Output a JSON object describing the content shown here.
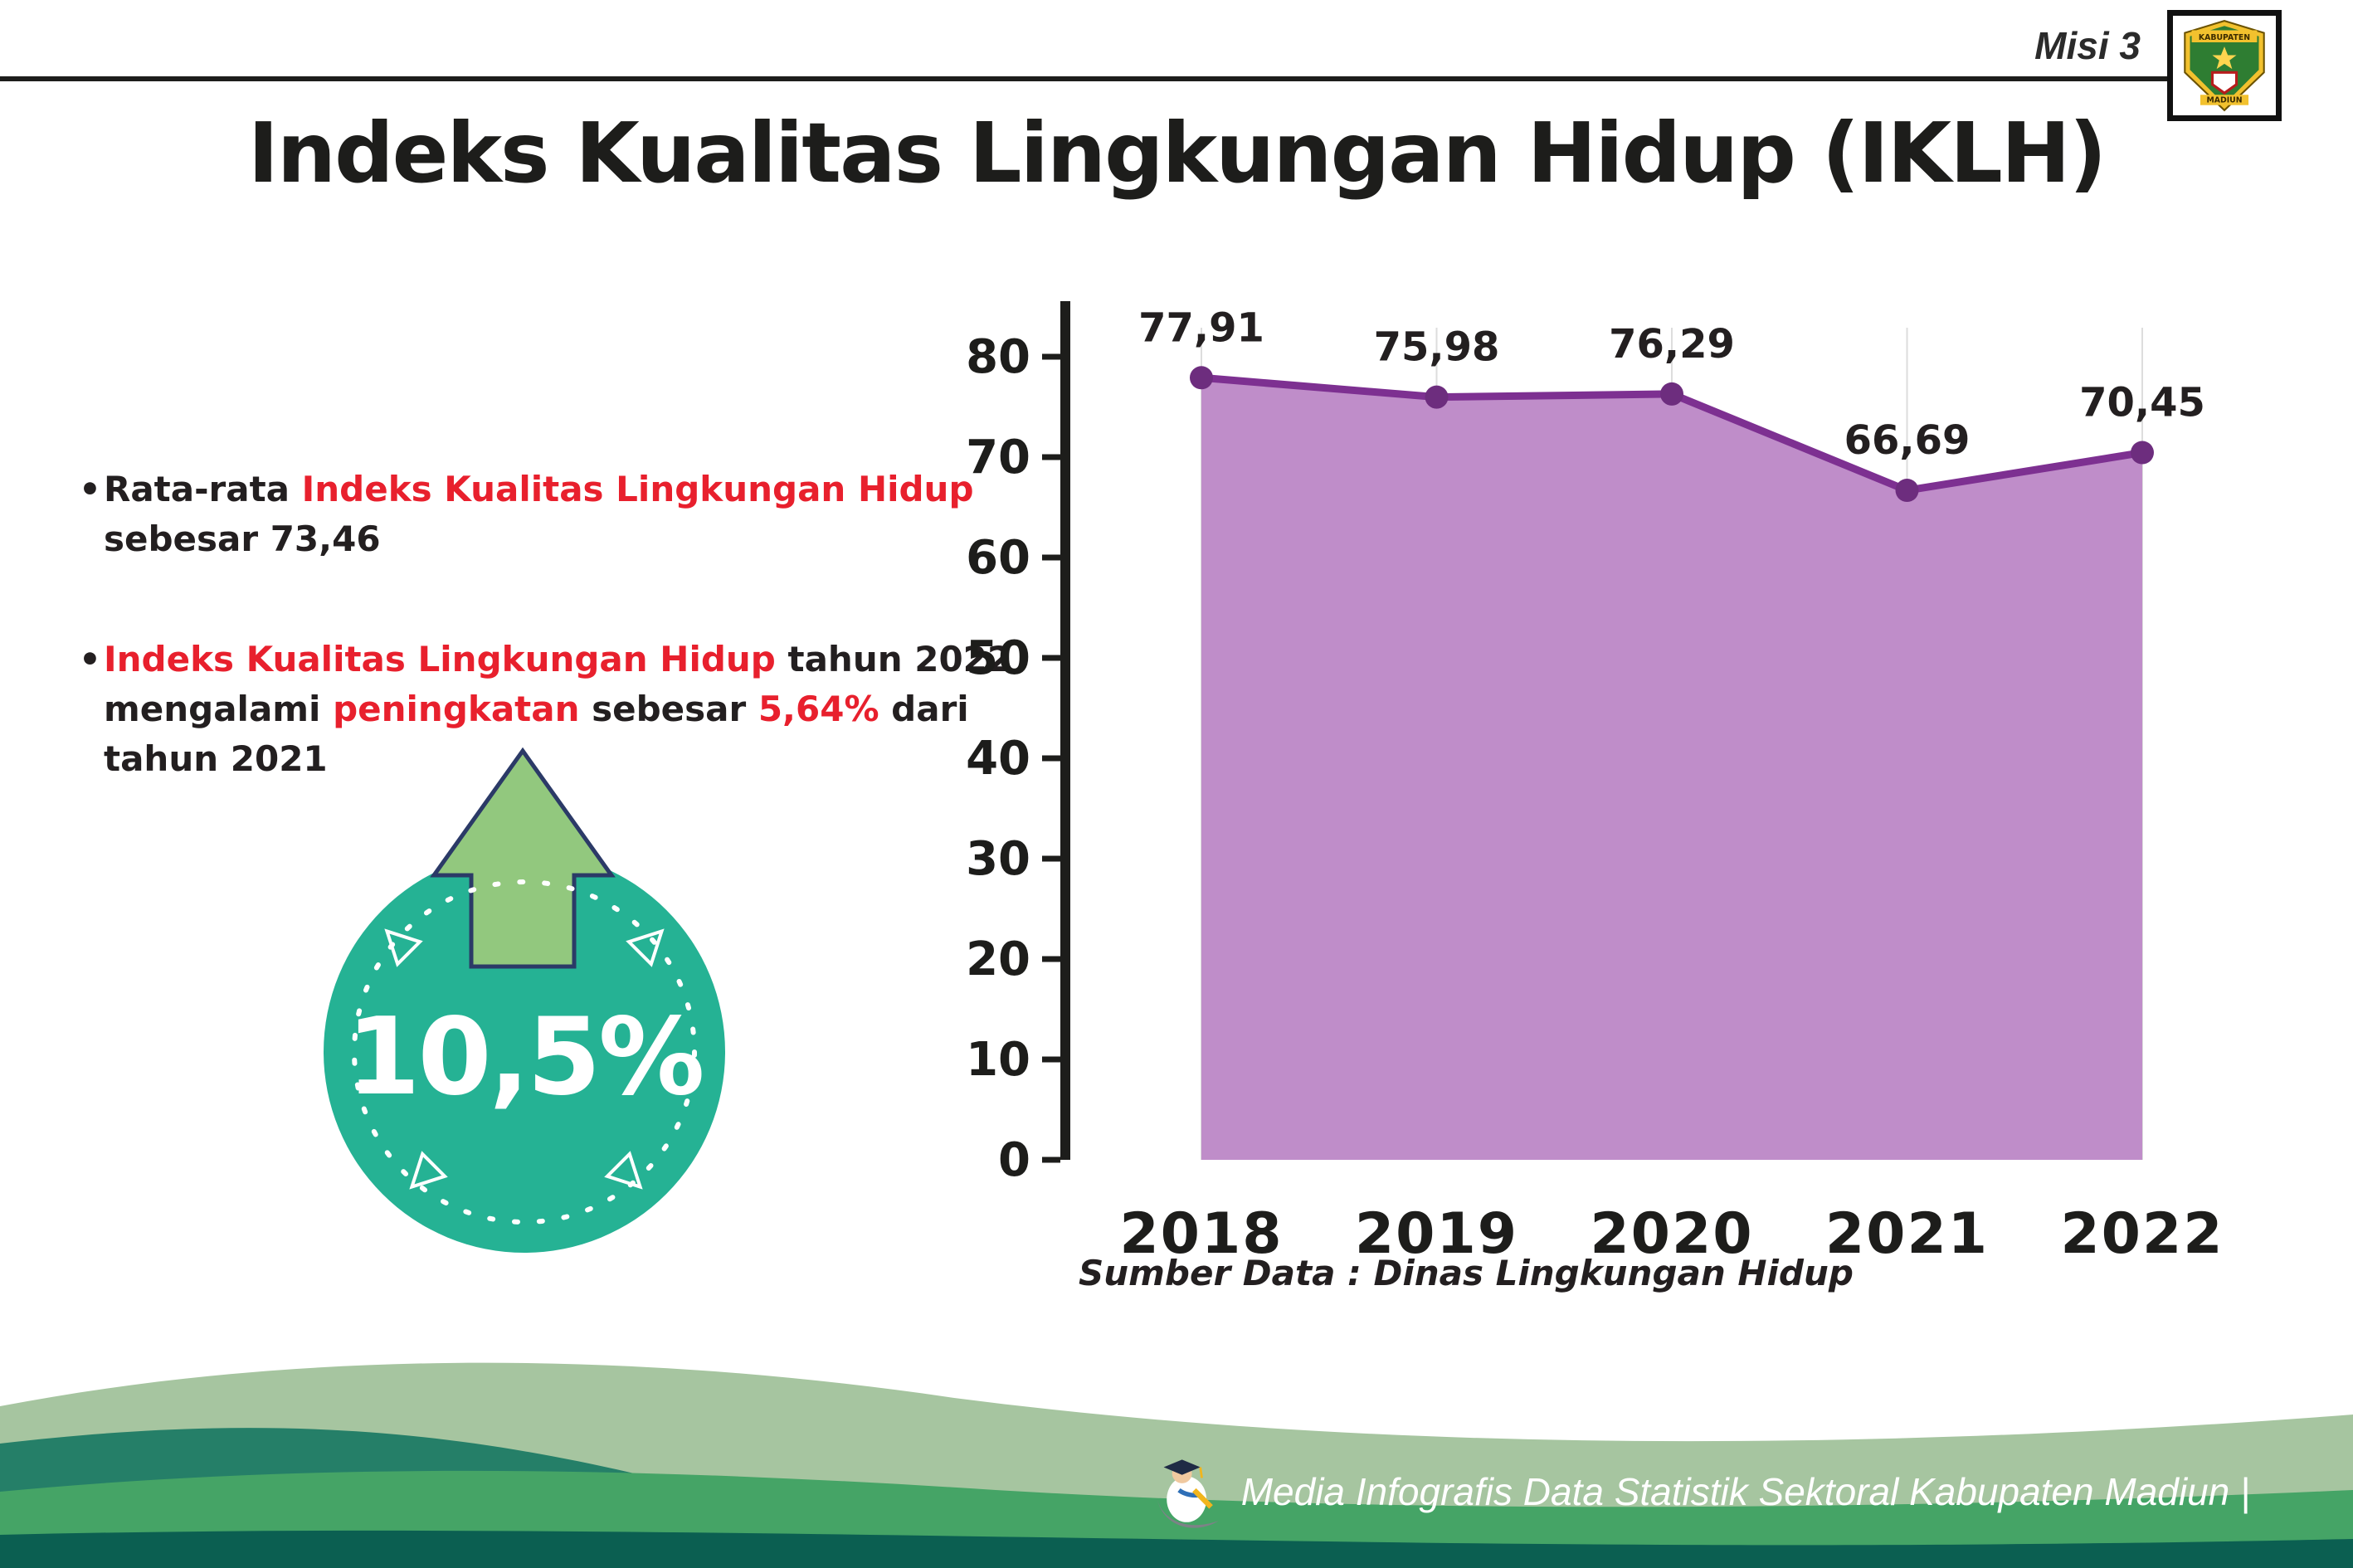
{
  "header": {
    "misi": "Misi 3",
    "title": "Indeks Kualitas Lingkungan Hidup (IKLH)"
  },
  "logo": {
    "top": "KABUPATEN",
    "bottom": "MADIUN"
  },
  "bullets": [
    {
      "lines": [
        [
          {
            "t": "Rata-rata ",
            "red": false
          },
          {
            "t": "Indeks Kualitas Lingkungan Hidup",
            "red": true
          }
        ],
        [
          {
            "t": "sebesar 73,46",
            "red": false
          }
        ]
      ]
    },
    {
      "lines": [
        [
          {
            "t": "Indeks Kualitas Lingkungan Hidup",
            "red": true
          },
          {
            "t": " tahun 2022",
            "red": false
          }
        ],
        [
          {
            "t": "mengalami ",
            "red": false
          },
          {
            "t": "peningkatan",
            "red": true
          },
          {
            "t": " sebesar ",
            "red": false
          },
          {
            "t": "5,64%",
            "red": true
          },
          {
            "t": " dari",
            "red": false
          }
        ],
        [
          {
            "t": "tahun 2021",
            "red": false
          }
        ]
      ]
    }
  ],
  "badge": {
    "value": "10,5%",
    "circle_color": "#25b294",
    "arrow_color": "#92c87e"
  },
  "chart_data": {
    "type": "area",
    "title": "Indeks Kualitas Lingkungan Hidup (IKLH)",
    "categories": [
      "2018",
      "2019",
      "2020",
      "2021",
      "2022"
    ],
    "values": [
      77.91,
      75.98,
      76.29,
      66.69,
      70.45
    ],
    "value_labels": [
      "77,91",
      "75,98",
      "76,29",
      "66,69",
      "70,45"
    ],
    "xlabel": "",
    "ylabel": "",
    "ylim": [
      0,
      80
    ],
    "yticks": [
      0,
      10,
      20,
      30,
      40,
      50,
      60,
      70,
      80
    ],
    "grid": "vertical-light",
    "legend": "none",
    "line_color": "#7d3091",
    "fill_color": "#bf8dc9",
    "dot_color": "#6d2d7e",
    "source": "Sumber Data : Dinas Lingkungan Hidup"
  },
  "footer": {
    "text": "Media Infografis Data Statistik Sektoral Kabupaten Madiun |"
  },
  "colors": {
    "accent_red": "#e8202d",
    "badge_teal": "#25b294",
    "arrow_green": "#92c87e",
    "area_purple": "#bf8dc9",
    "line_purple": "#7d3091",
    "footer_sage": "#a6c5a0",
    "footer_teal": "#257f68",
    "footer_green": "#45a466",
    "footer_dark": "#0b5f51"
  }
}
